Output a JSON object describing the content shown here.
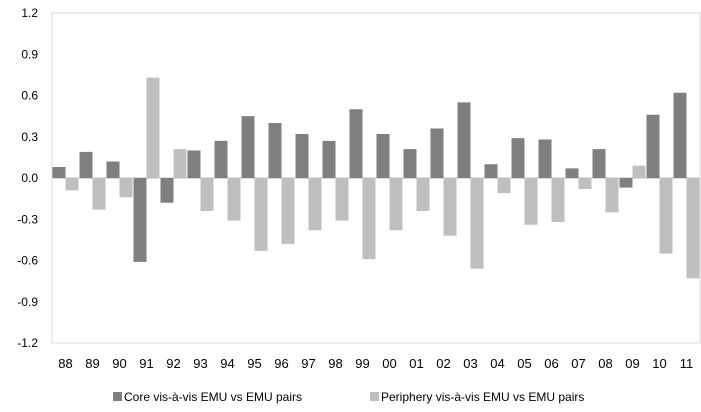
{
  "chart_data": {
    "type": "bar",
    "categories": [
      "88",
      "89",
      "90",
      "91",
      "92",
      "93",
      "94",
      "95",
      "96",
      "97",
      "98",
      "99",
      "00",
      "01",
      "02",
      "03",
      "04",
      "05",
      "06",
      "07",
      "08",
      "09",
      "10",
      "11"
    ],
    "series": [
      {
        "name": "Core vis-à-vis EMU vs EMU pairs",
        "color": "#7f7f7f",
        "values": [
          0.08,
          0.19,
          0.12,
          -0.61,
          -0.18,
          0.2,
          0.27,
          0.45,
          0.4,
          0.32,
          0.27,
          0.5,
          0.32,
          0.21,
          0.36,
          0.55,
          0.1,
          0.29,
          0.28,
          0.07,
          0.21,
          -0.07,
          0.46,
          0.62
        ]
      },
      {
        "name": "Periphery vis-à-vis EMU vs EMU pairs",
        "color": "#bfbfbf",
        "values": [
          -0.09,
          -0.23,
          -0.14,
          0.73,
          0.21,
          -0.24,
          -0.31,
          -0.53,
          -0.48,
          -0.38,
          -0.31,
          -0.59,
          -0.38,
          -0.24,
          -0.42,
          -0.66,
          -0.11,
          -0.34,
          -0.32,
          -0.08,
          -0.25,
          0.09,
          -0.55,
          -0.73
        ]
      }
    ],
    "yticks": [
      "1.2",
      "0.9",
      "0.6",
      "0.3",
      "0.0",
      "-0.3",
      "-0.6",
      "-0.9",
      "-1.2"
    ],
    "ylim": [
      -1.2,
      1.2
    ],
    "grid": false,
    "legend": "bottom",
    "title": "",
    "xlabel": "",
    "ylabel": ""
  }
}
